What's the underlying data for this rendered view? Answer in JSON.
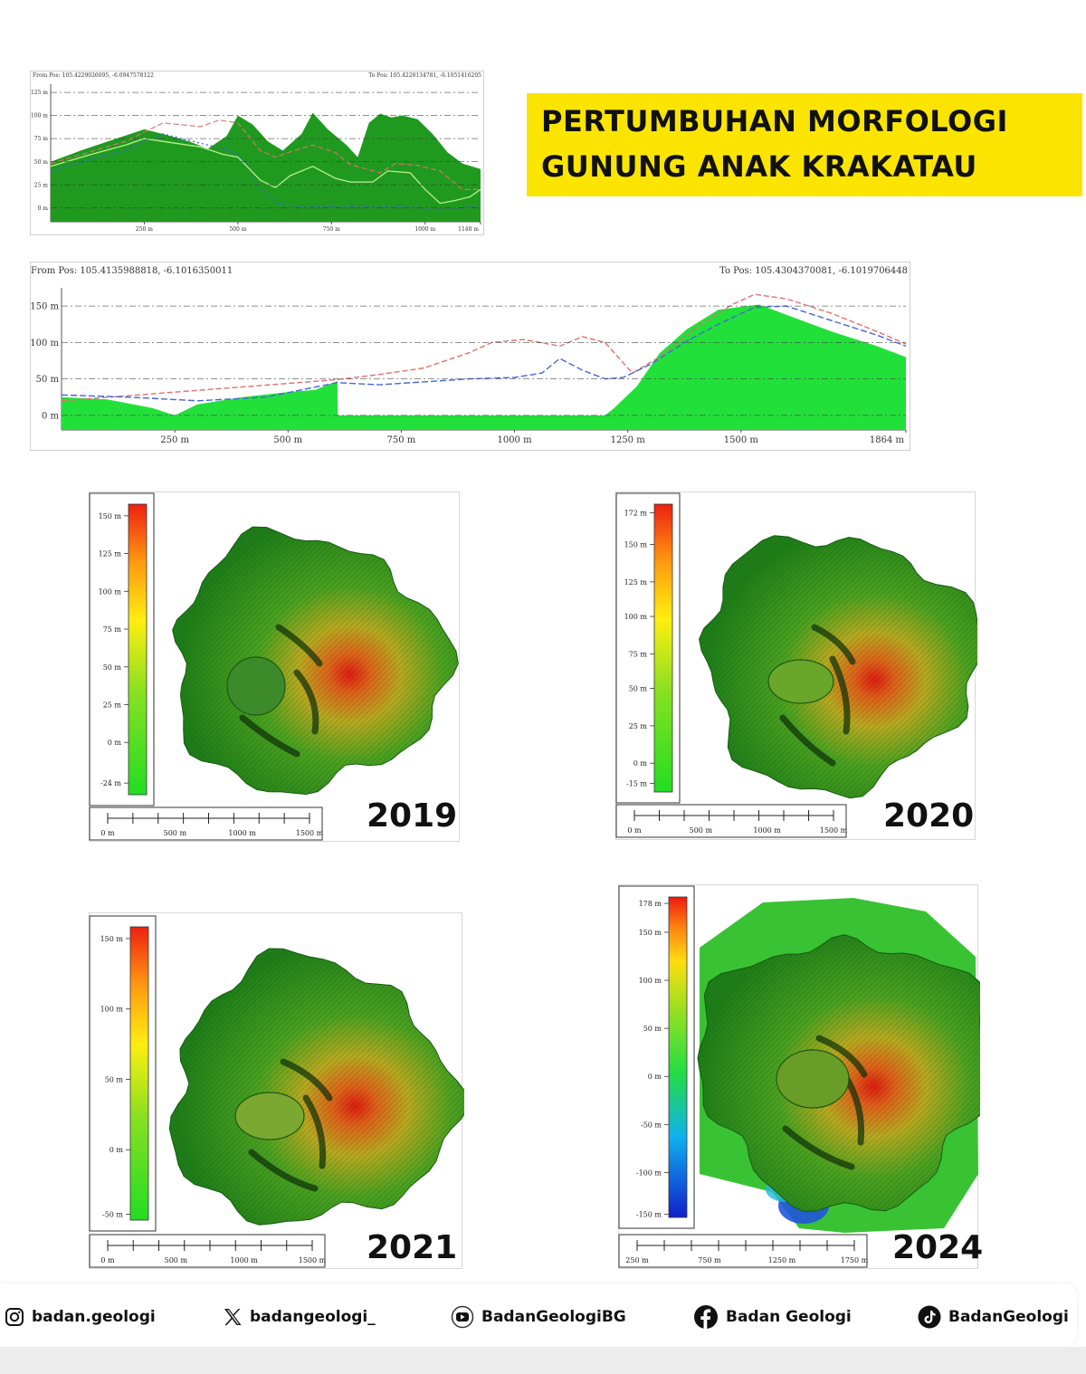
{
  "title": {
    "line1": "PERTUMBUHAN MORFOLOGI",
    "line2": "GUNUNG ANAK KRAKATAU"
  },
  "colors": {
    "title_bg": "#fbe500",
    "terrain_dark": "#1f9a1f",
    "terrain_bright": "#22e03a",
    "dash_red": "#e07070",
    "dash_blue": "#4466dd"
  },
  "chart_data": [
    {
      "type": "area",
      "from_pos": "From Pos: 105.4229026095, -6.0947578122",
      "to_pos": "To Pos: 105.4228134781, -6.1051416205",
      "y_ticks": [
        "125 m",
        "100 m",
        "75 m",
        "50 m",
        "25 m",
        "0 m"
      ],
      "x_ticks": [
        "250 m",
        "500 m",
        "750 m",
        "1000 m",
        "1148 m"
      ],
      "xlim": [
        0,
        1148
      ],
      "ylim": [
        -15,
        130
      ],
      "series": [
        {
          "style": "filled",
          "x": [
            0,
            80,
            160,
            250,
            300,
            370,
            420,
            470,
            500,
            540,
            580,
            620,
            670,
            700,
            740,
            790,
            820,
            850,
            880,
            910,
            940,
            980,
            1020,
            1060,
            1100,
            1148
          ],
          "y": [
            50,
            62,
            73,
            85,
            80,
            72,
            64,
            78,
            100,
            90,
            72,
            62,
            80,
            103,
            85,
            68,
            55,
            92,
            102,
            98,
            100,
            96,
            80,
            60,
            48,
            42
          ]
        },
        {
          "style": "dashed-red",
          "x": [
            0,
            100,
            200,
            250,
            300,
            400,
            450,
            500,
            560,
            600,
            650,
            700,
            760,
            800,
            880,
            920,
            980,
            1040,
            1100,
            1148
          ],
          "y": [
            48,
            60,
            72,
            82,
            92,
            88,
            95,
            92,
            62,
            55,
            62,
            68,
            60,
            47,
            38,
            48,
            46,
            40,
            20,
            20
          ]
        },
        {
          "style": "dotted-blue",
          "x": [
            0,
            100,
            200,
            300,
            400,
            480,
            520,
            560,
            600,
            620,
            660,
            760,
            900,
            1000,
            1100,
            1148
          ],
          "y": [
            40,
            52,
            62,
            80,
            70,
            62,
            50,
            20,
            7,
            3,
            2,
            1,
            2,
            0,
            0,
            3
          ]
        },
        {
          "style": "solid-light",
          "x": [
            0,
            100,
            200,
            250,
            300,
            400,
            460,
            500,
            560,
            600,
            640,
            700,
            760,
            800,
            860,
            900,
            960,
            1000,
            1040,
            1080,
            1120,
            1148
          ],
          "y": [
            45,
            57,
            68,
            75,
            72,
            66,
            58,
            55,
            30,
            22,
            35,
            45,
            32,
            28,
            28,
            40,
            38,
            20,
            5,
            8,
            12,
            20
          ]
        }
      ]
    },
    {
      "type": "area",
      "from_pos": "From Pos: 105.4135988818, -6.1016350011",
      "to_pos": "To Pos: 105.4304370081, -6.1019706448",
      "y_ticks": [
        "150 m",
        "100 m",
        "50 m",
        "0 m"
      ],
      "x_ticks": [
        "250 m",
        "500 m",
        "750 m",
        "1000 m",
        "1250 m",
        "1500 m",
        "1864 m"
      ],
      "xlim": [
        0,
        1864
      ],
      "ylim": [
        -20,
        170
      ],
      "series": [
        {
          "style": "filled",
          "x": [
            0,
            100,
            200,
            250,
            300,
            400,
            500,
            560,
            609,
            610,
            700,
            900,
            1100,
            1200,
            1220,
            1270,
            1320,
            1380,
            1450,
            1540,
            1600,
            1700,
            1800,
            1864
          ],
          "y": [
            25,
            22,
            10,
            0,
            15,
            25,
            32,
            35,
            47,
            0,
            0,
            0,
            0,
            0,
            10,
            40,
            85,
            118,
            145,
            152,
            138,
            115,
            95,
            80
          ]
        },
        {
          "style": "dashed-red",
          "x": [
            0,
            609,
            700,
            800,
            900,
            950,
            1020,
            1100,
            1150,
            1200,
            1260,
            1320,
            1400,
            1480,
            1530,
            1600,
            1700,
            1800,
            1864
          ],
          "y": [
            20,
            49,
            56,
            65,
            86,
            100,
            104,
            95,
            108,
            100,
            58,
            80,
            120,
            152,
            166,
            160,
            140,
            115,
            98
          ]
        },
        {
          "style": "dashed-blue",
          "x": [
            0,
            150,
            300,
            450,
            609,
            700,
            800,
            900,
            1000,
            1060,
            1100,
            1150,
            1200,
            1240,
            1300,
            1380,
            1450,
            1530,
            1600,
            1700,
            1800,
            1864
          ],
          "y": [
            28,
            25,
            20,
            25,
            45,
            42,
            46,
            50,
            52,
            58,
            78,
            62,
            50,
            52,
            70,
            102,
            125,
            148,
            150,
            130,
            110,
            95
          ]
        }
      ]
    }
  ],
  "maps": [
    {
      "year": "2019",
      "scale_ticks": [
        "150 m",
        "125 m",
        "100 m",
        "75 m",
        "50 m",
        "25 m",
        "0 m",
        "-24 m"
      ],
      "distance_ticks": [
        "0 m",
        "500 m",
        "1000 m",
        "1500 m"
      ]
    },
    {
      "year": "2020",
      "scale_ticks": [
        "172 m",
        "150 m",
        "125 m",
        "100 m",
        "75 m",
        "50 m",
        "25 m",
        "0 m",
        "-15 m"
      ],
      "distance_ticks": [
        "0 m",
        "500 m",
        "1000 m",
        "1500 m"
      ]
    },
    {
      "year": "2021",
      "scale_ticks": [
        "150 m",
        "100 m",
        "50 m",
        "0 m",
        "-50 m"
      ],
      "distance_ticks": [
        "0 m",
        "500 m",
        "1000 m",
        "1500 m"
      ]
    },
    {
      "year": "2024",
      "scale_ticks": [
        "178 m",
        "150 m",
        "100 m",
        "50 m",
        "0 m",
        "-50 m",
        "-100 m",
        "-150 m"
      ],
      "distance_ticks": [
        "250 m",
        "750 m",
        "1250 m",
        "1750 m"
      ]
    }
  ],
  "footer": {
    "instagram": {
      "label": "badan.geologi",
      "icon": "instagram-icon"
    },
    "x": {
      "label": "badangeologi_",
      "icon": "x-icon"
    },
    "youtube": {
      "label": "BadanGeologiBG",
      "icon": "youtube-icon"
    },
    "facebook": {
      "label": "Badan Geologi",
      "icon": "facebook-icon"
    },
    "tiktok": {
      "label": "BadanGeologi",
      "icon": "tiktok-icon"
    }
  }
}
